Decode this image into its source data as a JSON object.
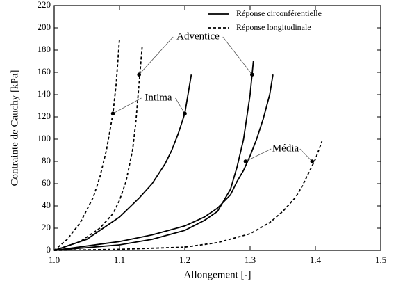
{
  "chart_data": {
    "type": "line",
    "x_label": "Allongement [-]",
    "y_label": "Contrainte de Cauchy [kPa]",
    "xlim": [
      1.0,
      1.5
    ],
    "xticks": [
      {
        "value": 1.0,
        "label": "1.0"
      },
      1.1,
      1.2,
      1.3,
      1.4,
      1.5
    ],
    "ylim": [
      0,
      220
    ],
    "yticks": [
      0,
      20,
      40,
      60,
      80,
      100,
      120,
      140,
      160,
      180,
      200,
      220
    ],
    "legend_position": "upper right",
    "series": [
      {
        "name": "Réponse circonférentielle",
        "dash": "solid",
        "color": "#000000",
        "x": [
          1.0,
          1.05,
          1.1,
          1.13,
          1.15,
          1.17,
          1.18,
          1.19,
          1.2,
          1.21
        ],
        "values": [
          0,
          10,
          30,
          47,
          60,
          78,
          90,
          105,
          123,
          158
        ]
      },
      {
        "name": "Réponse circonférentielle",
        "dash": "solid",
        "color": "#000000",
        "x": [
          1.0,
          1.1,
          1.15,
          1.2,
          1.23,
          1.25,
          1.27,
          1.28,
          1.29,
          1.3,
          1.305
        ],
        "values": [
          0,
          5,
          10,
          18,
          27,
          35,
          55,
          75,
          100,
          140,
          170
        ]
      },
      {
        "name": "Réponse circonférentielle",
        "dash": "solid",
        "color": "#000000",
        "x": [
          1.0,
          1.1,
          1.15,
          1.2,
          1.23,
          1.25,
          1.27,
          1.28,
          1.29,
          1.3,
          1.31,
          1.32,
          1.33,
          1.335
        ],
        "values": [
          0,
          8,
          14,
          22,
          30,
          38,
          50,
          62,
          72,
          85,
          100,
          118,
          140,
          158
        ]
      },
      {
        "name": "Réponse longitudinale",
        "dash": "dashed",
        "color": "#000000",
        "x": [
          1.0,
          1.02,
          1.04,
          1.06,
          1.07,
          1.08,
          1.09,
          1.095,
          1.1
        ],
        "values": [
          0,
          10,
          25,
          48,
          66,
          90,
          123,
          150,
          190
        ]
      },
      {
        "name": "Réponse longitudinale",
        "dash": "dashed",
        "color": "#000000",
        "x": [
          1.0,
          1.04,
          1.07,
          1.09,
          1.1,
          1.11,
          1.12,
          1.125,
          1.13,
          1.135
        ],
        "values": [
          0,
          8,
          20,
          33,
          45,
          62,
          90,
          115,
          150,
          185
        ]
      },
      {
        "name": "Réponse longitudinale",
        "dash": "dashed",
        "color": "#000000",
        "x": [
          1.0,
          1.1,
          1.2,
          1.25,
          1.3,
          1.33,
          1.35,
          1.37,
          1.38,
          1.39,
          1.4,
          1.41
        ],
        "values": [
          0,
          1,
          3,
          7,
          15,
          25,
          35,
          48,
          58,
          70,
          82,
          98
        ]
      }
    ],
    "annotations": [
      {
        "text": "Adventice",
        "points": [
          {
            "x": 1.13,
            "y": 158
          },
          {
            "x": 1.303,
            "y": 158
          }
        ]
      },
      {
        "text": "Intima",
        "points": [
          {
            "x": 1.09,
            "y": 123
          },
          {
            "x": 1.2,
            "y": 123
          }
        ]
      },
      {
        "text": "Média",
        "points": [
          {
            "x": 1.293,
            "y": 80
          },
          {
            "x": 1.395,
            "y": 80
          }
        ]
      }
    ]
  }
}
